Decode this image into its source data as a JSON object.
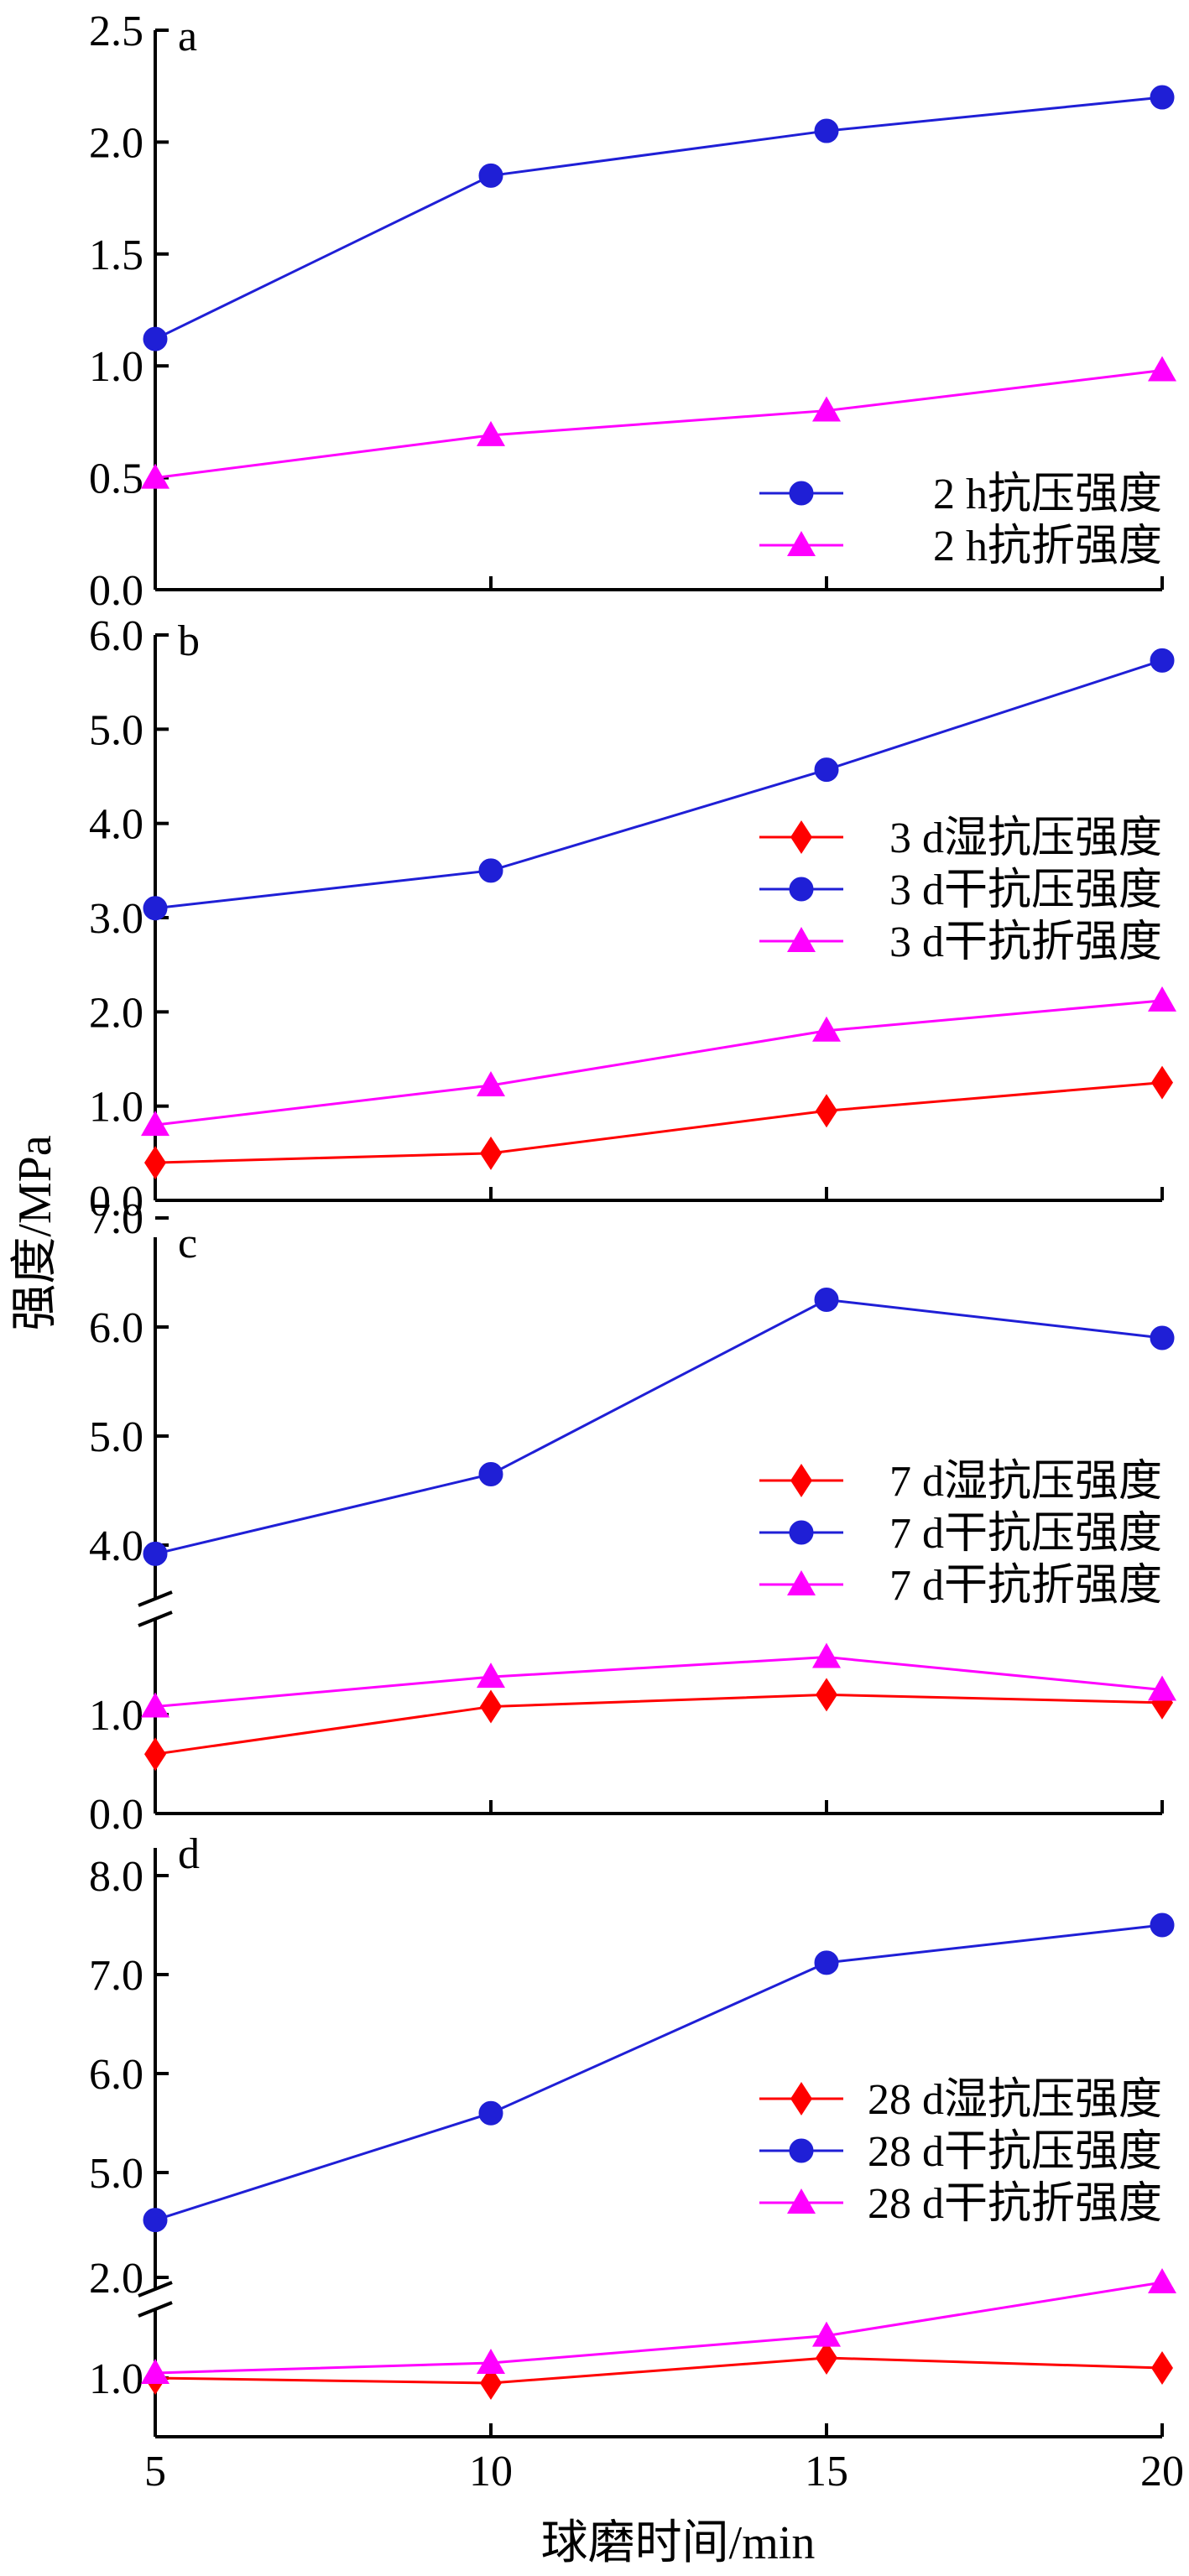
{
  "chart_data": {
    "type": "line",
    "ylabel": "强度/MPa",
    "xlabel": "球磨时间/min",
    "x": [
      5,
      10,
      15,
      20
    ],
    "x_ticks": [
      "5",
      "10",
      "15",
      "20"
    ],
    "xlim": [
      5,
      20
    ],
    "colors": {
      "red": "#ff0000",
      "blue": "#1f1fd6",
      "magenta": "#ff00ff"
    },
    "panels": [
      {
        "label": "a",
        "ylim": [
          0,
          2.5
        ],
        "y_ticks": [
          "0.0",
          "0.5",
          "1.0",
          "1.5",
          "2.0",
          "2.5"
        ],
        "legend_position": "bottom-right",
        "series": [
          {
            "name": "2 h抗压强度",
            "color": "blue",
            "marker": "circle",
            "values": [
              1.12,
              1.85,
              2.05,
              2.2
            ]
          },
          {
            "name": "2 h抗折强度",
            "color": "magenta",
            "marker": "triangle",
            "values": [
              0.5,
              0.69,
              0.8,
              0.98
            ]
          }
        ]
      },
      {
        "label": "b",
        "ylim": [
          0,
          6.0
        ],
        "y_ticks": [
          "0.0",
          "1.0",
          "2.0",
          "3.0",
          "4.0",
          "5.0",
          "6.0"
        ],
        "legend_position": "right",
        "series": [
          {
            "name": "3 d湿抗压强度",
            "color": "red",
            "marker": "diamond",
            "values": [
              0.4,
              0.5,
              0.95,
              1.25
            ]
          },
          {
            "name": "3 d干抗压强度",
            "color": "blue",
            "marker": "circle",
            "values": [
              3.1,
              3.5,
              4.57,
              5.73
            ]
          },
          {
            "name": "3 d干抗折强度",
            "color": "magenta",
            "marker": "triangle",
            "values": [
              0.8,
              1.22,
              1.8,
              2.12
            ]
          }
        ]
      },
      {
        "label": "c",
        "axis_break": true,
        "lower_ylim": [
          0,
          1.6
        ],
        "upper_ylim": [
          3.8,
          7.0
        ],
        "y_ticks": [
          "0.0",
          "1.0",
          "4.0",
          "5.0",
          "6.0",
          "7.0"
        ],
        "legend_position": "right",
        "series": [
          {
            "name": "7 d湿抗压强度",
            "color": "red",
            "marker": "diamond",
            "values": [
              0.6,
              1.08,
              1.2,
              1.12
            ]
          },
          {
            "name": "7 d干抗压强度",
            "color": "blue",
            "marker": "circle",
            "values": [
              3.92,
              4.65,
              6.25,
              5.9
            ]
          },
          {
            "name": "7 d干抗折强度",
            "color": "magenta",
            "marker": "triangle",
            "values": [
              1.08,
              1.38,
              1.58,
              1.25
            ]
          }
        ]
      },
      {
        "label": "d",
        "axis_break": true,
        "lower_ylim": [
          0.7,
          2.0
        ],
        "upper_ylim": [
          4.7,
          8.0
        ],
        "y_ticks": [
          "1.0",
          "2.0",
          "5.0",
          "6.0",
          "7.0",
          "8.0"
        ],
        "legend_position": "right",
        "series": [
          {
            "name": "28 d湿抗压强度",
            "color": "red",
            "marker": "diamond",
            "values": [
              1.0,
              0.95,
              1.2,
              1.1
            ]
          },
          {
            "name": "28 d干抗压强度",
            "color": "blue",
            "marker": "circle",
            "values": [
              4.52,
              5.6,
              7.12,
              7.5
            ]
          },
          {
            "name": "28 d干抗折强度",
            "color": "magenta",
            "marker": "triangle",
            "values": [
              1.05,
              1.15,
              1.42,
              1.95
            ]
          }
        ]
      }
    ]
  }
}
